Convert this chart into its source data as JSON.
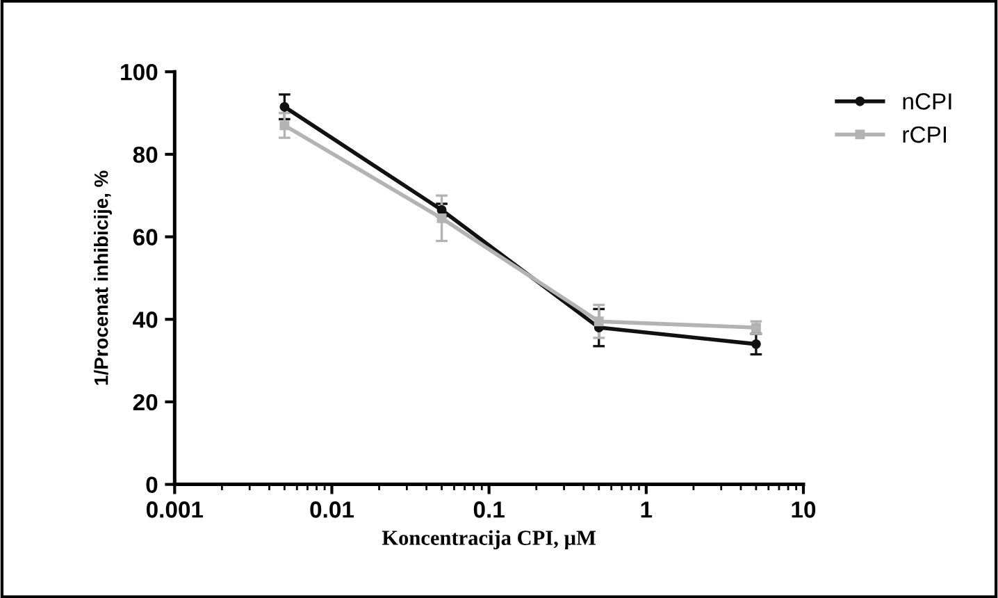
{
  "chart_data": {
    "type": "line",
    "xlabel": "Koncentracija CPI, µM",
    "ylabel": "1/Procenat inhibicije, %",
    "log": "x",
    "xlim": [
      0.001,
      10
    ],
    "xticks": [
      0.001,
      0.01,
      0.1,
      1,
      10
    ],
    "ylim": [
      0,
      100
    ],
    "yticks": [
      0,
      20,
      40,
      60,
      80,
      100
    ],
    "grid": false,
    "legend": "top right",
    "x": [
      0.005,
      0.05,
      0.5,
      5
    ],
    "series": [
      {
        "name": "nCPI",
        "color": "#111111",
        "marker": "circle",
        "values": [
          91.5,
          66.5,
          38,
          34
        ],
        "errors": [
          3,
          1.5,
          4.5,
          2.5
        ]
      },
      {
        "name": "rCPI",
        "color": "#b3b3b3",
        "marker": "square",
        "values": [
          87,
          64.5,
          39.5,
          38
        ],
        "errors": [
          3,
          5.5,
          4,
          1.5
        ]
      }
    ]
  }
}
